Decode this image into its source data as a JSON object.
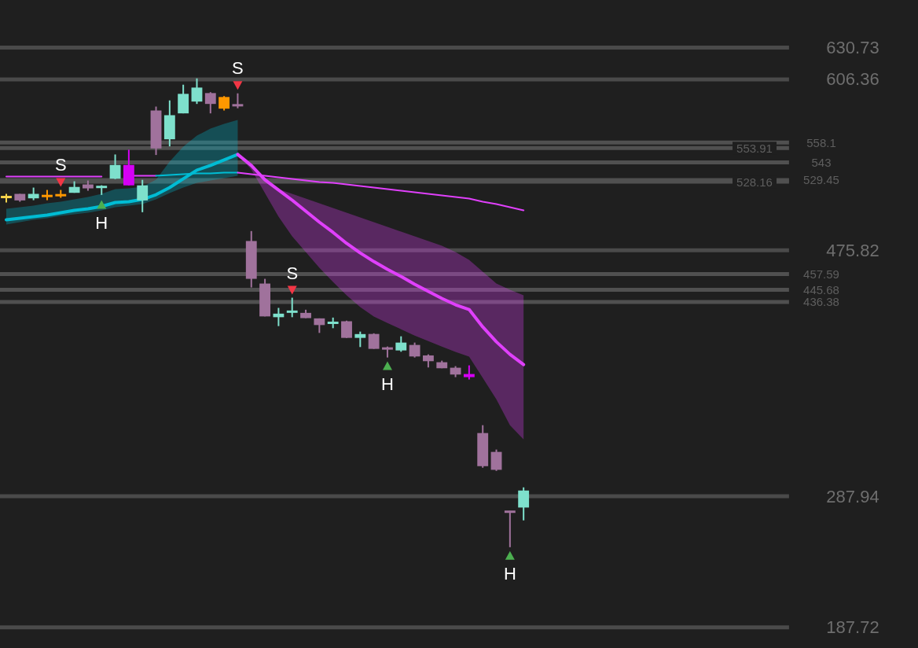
{
  "chart_data": {
    "type": "candlestick",
    "categories": [
      null,
      null,
      null,
      null,
      null,
      null,
      null,
      null,
      null,
      null,
      null,
      null,
      null,
      null,
      null,
      null,
      null,
      null,
      null,
      null,
      null,
      null,
      null,
      null,
      null,
      null,
      null,
      null,
      null,
      null,
      null,
      null,
      null,
      null,
      null,
      null,
      null,
      null,
      null,
      null,
      null,
      null,
      null,
      null,
      null,
      null,
      null,
      null,
      null,
      null,
      null,
      null,
      null,
      null,
      null,
      null,
      null,
      null
    ],
    "ohlc": [
      [
        516.5,
        518.9,
        512.3,
        516.5
      ],
      [
        518.9,
        518.9,
        512.9,
        513.9
      ],
      [
        515.5,
        523.7,
        514.1,
        518.9
      ],
      [
        517.3,
        521.9,
        514.1,
        517.3
      ],
      [
        517.9,
        521.9,
        515.9,
        517.9
      ],
      [
        519.7,
        528.5,
        519.7,
        524.2
      ],
      [
        526.1,
        529.1,
        521.3,
        523.1
      ],
      [
        524.0,
        525.5,
        518.1,
        524.2
      ],
      [
        530.5,
        549.0,
        530.2,
        541.0
      ],
      [
        541.0,
        552.6,
        525.4,
        525.4
      ],
      [
        513.9,
        529.6,
        504.9,
        525.4
      ],
      [
        582.6,
        585.6,
        548.6,
        553.6
      ],
      [
        560.6,
        590.3,
        555.2,
        579.0
      ],
      [
        580.4,
        602.3,
        580.4,
        595.3
      ],
      [
        589.4,
        607.1,
        587.6,
        600.1
      ],
      [
        595.9,
        596.6,
        580.4,
        587.6
      ],
      [
        592.9,
        593.6,
        582.6,
        584.0
      ],
      [
        586.6,
        595.7,
        584.3,
        586.4
      ],
      [
        482.9,
        490.5,
        447.4,
        454.0
      ],
      [
        450.4,
        454.0,
        425.3,
        425.3
      ],
      [
        424.7,
        431.8,
        417.9,
        427.4
      ],
      [
        428.6,
        439.6,
        424.7,
        428.9
      ],
      [
        428.0,
        430.4,
        424.0,
        424.0
      ],
      [
        423.8,
        423.8,
        412.7,
        418.7
      ],
      [
        420.1,
        424.4,
        416.3,
        420.4
      ],
      [
        421.6,
        422.1,
        408.9,
        408.9
      ],
      [
        408.9,
        413.7,
        401.9,
        411.8
      ],
      [
        411.9,
        412.4,
        400.5,
        400.5
      ],
      [
        400.8,
        402.3,
        393.9,
        400.7
      ],
      [
        399.3,
        410.1,
        398.3,
        405.3
      ],
      [
        403.5,
        405.3,
        393.9,
        394.7
      ],
      [
        395.5,
        396.3,
        386.3,
        391.1
      ],
      [
        390.3,
        391.5,
        385.7,
        385.7
      ],
      [
        386.1,
        387.3,
        378.9,
        380.9
      ],
      [
        381.3,
        387.9,
        377.1,
        378.9
      ],
      [
        336.2,
        342.2,
        309.7,
        310.9
      ],
      [
        321.8,
        323.6,
        307.3,
        308.1
      ],
      [
        276.1,
        276.7,
        249.0,
        275.5
      ],
      [
        279.3,
        294.7,
        269.5,
        292.3
      ],
      null,
      null,
      null,
      null,
      null,
      null,
      null,
      null,
      null,
      null,
      null,
      null,
      null,
      null,
      null,
      null,
      null,
      null,
      null
    ],
    "colors": [
      "#f7d44c",
      "#a0729c",
      "#7ee0cc",
      "#ff9800",
      "#ff9800",
      "#7ee0cc",
      "#a0729c",
      "#7ee0cc",
      "#7ee0cc",
      "#d500f5",
      "#7ee0cc",
      "#a0729c",
      "#7ee0cc",
      "#7ee0cc",
      "#7ee0cc",
      "#a0729c",
      "#ff9800",
      "#a0729c",
      "#a0729c",
      "#a0729c",
      "#7ee0cc",
      "#7ee0cc",
      "#a0729c",
      "#a0729c",
      "#7ee0cc",
      "#a0729c",
      "#7ee0cc",
      "#a0729c",
      "#a0729c",
      "#7ee0cc",
      "#a0729c",
      "#a0729c",
      "#a0729c",
      "#a0729c",
      "#d500f5",
      "#a0729c",
      "#a0729c",
      "#a0729c",
      "#7ee0cc",
      null,
      null,
      null,
      null,
      null,
      null,
      null,
      null,
      null,
      null,
      null,
      null,
      null,
      null,
      null,
      null,
      null,
      null,
      null
    ],
    "series": [
      {
        "type": "line",
        "color": "#00bcd4",
        "values": [
          499.1,
          500.3,
          501.5,
          502.7,
          504.5,
          506.3,
          507.5,
          509.3,
          512.3,
          512.9,
          514.7,
          518.3,
          523.7,
          530.4,
          537.0,
          540.6,
          544.8,
          549.0,
          null,
          null,
          null,
          null,
          null,
          null,
          null,
          null,
          null,
          null,
          null,
          null,
          null,
          null,
          null,
          null,
          null,
          null,
          null,
          null,
          null,
          null,
          null,
          null,
          null,
          null,
          null,
          null,
          null,
          null,
          null,
          null,
          null,
          null,
          null,
          null,
          null,
          null,
          null,
          null
        ],
        "lower": [
          495.5,
          497.3,
          499.1,
          500.3,
          502.1,
          503.3,
          504.5,
          506.3,
          508.7,
          509.9,
          511.1,
          514.7,
          519.5,
          523.7,
          527.3,
          529.1,
          530.9,
          532.8,
          null,
          null,
          null,
          null,
          null,
          null,
          null,
          null,
          null,
          null,
          null,
          null,
          null,
          null,
          null,
          null,
          null,
          null,
          null,
          null,
          null,
          null,
          null,
          null,
          null,
          null,
          null,
          null,
          null,
          null,
          null,
          null,
          null,
          null,
          null,
          null,
          null,
          null,
          null,
          null
        ],
        "upper": [
          507.5,
          508.7,
          509.9,
          511.7,
          512.9,
          514.7,
          516.5,
          518.9,
          522.5,
          523.1,
          524.3,
          529.7,
          543.6,
          555.0,
          563.4,
          568.8,
          572.4,
          575.4,
          null,
          null,
          null,
          null,
          null,
          null,
          null,
          null,
          null,
          null,
          null,
          null,
          null,
          null,
          null,
          null,
          null,
          null,
          null,
          null,
          null,
          null,
          null,
          null,
          null,
          null,
          null,
          null,
          null,
          null,
          null,
          null,
          null,
          null,
          null,
          null,
          null,
          null,
          null,
          null
        ]
      },
      {
        "type": "line",
        "color": "#e040fb",
        "values": [
          null,
          null,
          null,
          null,
          null,
          null,
          null,
          null,
          null,
          null,
          null,
          null,
          null,
          null,
          null,
          null,
          null,
          549.0,
          540.6,
          529.7,
          521.9,
          514.1,
          505.7,
          497.3,
          489.5,
          481.1,
          473.8,
          467.2,
          461.2,
          455.8,
          449.8,
          444.4,
          439.0,
          434.2,
          430.6,
          417.3,
          405.9,
          396.3,
          388.5,
          null,
          null,
          null,
          null,
          null,
          null,
          null,
          null,
          null,
          null,
          null,
          null,
          null,
          null,
          null,
          null,
          null,
          null,
          null
        ],
        "lower": [
          null,
          null,
          null,
          null,
          null,
          null,
          null,
          null,
          null,
          null,
          null,
          null,
          null,
          null,
          null,
          null,
          null,
          549.0,
          537.6,
          519.5,
          501.5,
          486.5,
          474.4,
          462.4,
          451.6,
          441.4,
          432.4,
          425.2,
          420.3,
          415.5,
          410.7,
          406.5,
          402.3,
          398.1,
          394.5,
          378.3,
          362.0,
          342.2,
          331.4,
          null,
          null,
          null,
          null,
          null,
          null,
          null,
          null,
          null,
          null,
          null,
          null,
          null,
          null,
          null,
          null,
          null,
          null,
          null
        ],
        "upper": [
          null,
          null,
          null,
          null,
          null,
          null,
          null,
          null,
          null,
          null,
          null,
          null,
          null,
          null,
          null,
          null,
          null,
          549.0,
          540.6,
          531.6,
          522.5,
          518.9,
          515.3,
          511.7,
          508.1,
          504.5,
          500.9,
          497.3,
          493.7,
          490.1,
          486.5,
          482.9,
          479.3,
          474.4,
          468.4,
          459.4,
          450.4,
          445.6,
          441.4,
          null,
          null,
          null,
          null,
          null,
          null,
          null,
          null,
          null,
          null,
          null,
          null,
          null,
          null,
          null,
          null,
          null,
          null,
          null
        ]
      },
      {
        "type": "line",
        "color": "#e040fb",
        "values": [
          532.2,
          532.2,
          532.2,
          532.2,
          532.2,
          532.2,
          532.2,
          532.2,
          null,
          532.8,
          532.8,
          532.8,
          null,
          null,
          null,
          null,
          null,
          null,
          null,
          null,
          null,
          null,
          null,
          null,
          null,
          null,
          null,
          null,
          null,
          null,
          null,
          null,
          null,
          null,
          null,
          null,
          null,
          null,
          null,
          null,
          null,
          null,
          null,
          null,
          null,
          null,
          null,
          null,
          null,
          null,
          null,
          null,
          null,
          null,
          null,
          null,
          null,
          null
        ]
      },
      {
        "type": "line",
        "color": "#00bcd4",
        "values": [
          null,
          null,
          null,
          null,
          null,
          null,
          null,
          null,
          null,
          null,
          null,
          532.8,
          533.4,
          534.0,
          534.6,
          534.6,
          535.2,
          535.2,
          null,
          null,
          null,
          null,
          null,
          null,
          null,
          null,
          null,
          null,
          null,
          null,
          null,
          null,
          null,
          null,
          null,
          null,
          null,
          null,
          null,
          null,
          null,
          null,
          null,
          null,
          null,
          null,
          null,
          null,
          null,
          null,
          null,
          null,
          null,
          null,
          null,
          null,
          null,
          null
        ]
      },
      {
        "type": "line",
        "color": "#e040fb",
        "values": [
          null,
          null,
          null,
          null,
          null,
          null,
          null,
          null,
          null,
          null,
          null,
          null,
          null,
          null,
          null,
          null,
          null,
          535.2,
          534.0,
          532.8,
          531.6,
          530.3,
          529.1,
          527.9,
          527.3,
          526.1,
          524.9,
          523.7,
          522.5,
          521.3,
          520.1,
          518.9,
          517.7,
          516.5,
          515.3,
          512.9,
          511.1,
          508.7,
          506.3,
          null,
          null,
          null,
          null,
          null,
          null,
          null,
          null,
          null,
          null,
          null,
          null,
          null,
          null,
          null,
          null,
          null,
          null,
          null
        ]
      },
      {
        "type": "scatter",
        "color": "#f23645",
        "marker": "triangle",
        "values": [
          null,
          null,
          null,
          null,
          528.0,
          null,
          null,
          null,
          null,
          null,
          null,
          null,
          null,
          null,
          null,
          null,
          null,
          601.9,
          null,
          null,
          null,
          445.6,
          null,
          null,
          null,
          null,
          null,
          null,
          null,
          null,
          null,
          null,
          null,
          null,
          null,
          null,
          null,
          null,
          null,
          null,
          null,
          null,
          null,
          null,
          null,
          null,
          null,
          null,
          null,
          null,
          null,
          null,
          null,
          null,
          null,
          null,
          null,
          null
        ],
        "value_labels": [
          null,
          null,
          null,
          null,
          "S",
          null,
          null,
          null,
          null,
          null,
          null,
          null,
          null,
          null,
          null,
          null,
          null,
          "S",
          null,
          null,
          null,
          "S",
          null,
          null,
          null,
          null,
          null,
          null,
          null,
          null,
          null,
          null,
          null,
          null,
          null,
          null,
          null,
          null,
          null,
          null,
          null,
          null,
          null,
          null,
          null,
          null,
          null,
          null,
          null,
          null,
          null,
          null,
          null,
          null,
          null,
          null,
          null,
          null
        ]
      },
      {
        "type": "scatter",
        "color": "#4caf50",
        "marker": "triangle",
        "values": [
          null,
          null,
          null,
          null,
          null,
          null,
          null,
          510.5,
          null,
          null,
          null,
          null,
          null,
          null,
          null,
          null,
          null,
          null,
          null,
          null,
          null,
          null,
          null,
          null,
          null,
          null,
          null,
          null,
          387.3,
          null,
          null,
          null,
          null,
          null,
          null,
          null,
          null,
          242.4,
          null,
          null,
          null,
          null,
          null,
          null,
          null,
          null,
          null,
          null,
          null,
          null,
          null,
          null,
          null,
          null,
          null,
          null,
          null,
          null
        ],
        "value_labels": [
          null,
          null,
          null,
          null,
          null,
          null,
          null,
          "H",
          null,
          null,
          null,
          null,
          null,
          null,
          null,
          null,
          null,
          null,
          null,
          null,
          null,
          null,
          null,
          null,
          null,
          null,
          null,
          null,
          "H",
          null,
          null,
          null,
          null,
          null,
          null,
          null,
          null,
          "H",
          null,
          null,
          null,
          null,
          null,
          null,
          null,
          null,
          null,
          null,
          null,
          null,
          null,
          null,
          null,
          null,
          null,
          null,
          null,
          null
        ]
      }
    ],
    "ylim": [
      172,
      667
    ],
    "yticks": [
      630.73,
      606.36,
      475.82,
      287.94,
      187.72
    ],
    "grid": "y",
    "tick_labels": "y",
    "ref_lines": [
      {
        "axis": "y",
        "value": 558.1,
        "label": "558.1"
      },
      {
        "axis": "y",
        "value": 553.91,
        "label": "553.91"
      },
      {
        "axis": "y",
        "value": 543,
        "label": "543"
      },
      {
        "axis": "y",
        "value": 529.45,
        "label": "529.45"
      },
      {
        "axis": "y",
        "value": 528.16,
        "label": "528.16"
      },
      {
        "axis": "y",
        "value": 457.59,
        "label": "457.59"
      },
      {
        "axis": "y",
        "value": 445.68,
        "label": "445.68"
      },
      {
        "axis": "y",
        "value": 436.38,
        "label": "436.38"
      }
    ]
  }
}
